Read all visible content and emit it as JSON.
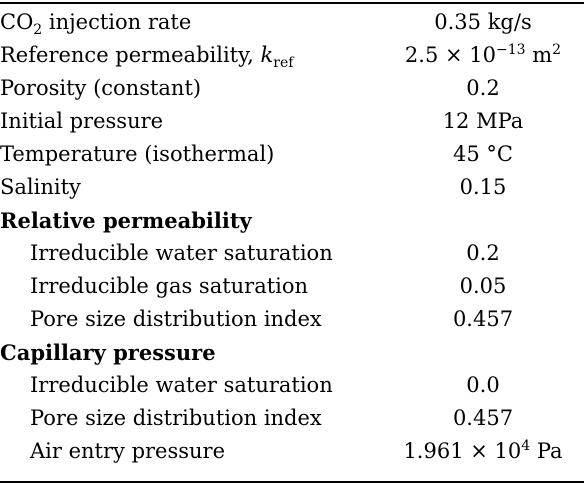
{
  "table": {
    "rows": [
      {
        "kind": "row",
        "label_main": "CO",
        "label_sub": "2",
        "label_rest": " injection rate",
        "value": "0.35 kg/s"
      },
      {
        "kind": "row",
        "label_text": "Reference permeability, ",
        "label_sym": "k",
        "label_sym_sub": "ref",
        "value_main": "2.5 × 10",
        "value_sup": "−13",
        "value_unit": " m",
        "value_unit_sup": "2"
      },
      {
        "kind": "row",
        "label": "Porosity (constant)",
        "value": "0.2"
      },
      {
        "kind": "row",
        "label": "Initial pressure",
        "value": "12 MPa"
      },
      {
        "kind": "row",
        "label": "Temperature (isothermal)",
        "value": "45 °C"
      },
      {
        "kind": "row",
        "label": "Salinity",
        "value": "0.15"
      },
      {
        "kind": "section",
        "label": "Relative permeability"
      },
      {
        "kind": "sub",
        "label": "Irreducible water saturation",
        "value": "0.2"
      },
      {
        "kind": "sub",
        "label": "Irreducible gas saturation",
        "value": "0.05"
      },
      {
        "kind": "sub",
        "label": "Pore size distribution index",
        "value": "0.457"
      },
      {
        "kind": "section",
        "label": "Capillary pressure"
      },
      {
        "kind": "sub",
        "label": "Irreducible water saturation",
        "value": "0.0"
      },
      {
        "kind": "sub",
        "label": "Pore size distribution index",
        "value": "0.457"
      },
      {
        "kind": "sub",
        "label": "Air entry pressure",
        "value_main": "1.961 × 10",
        "value_sup": "4",
        "value_unit": " Pa"
      }
    ]
  }
}
